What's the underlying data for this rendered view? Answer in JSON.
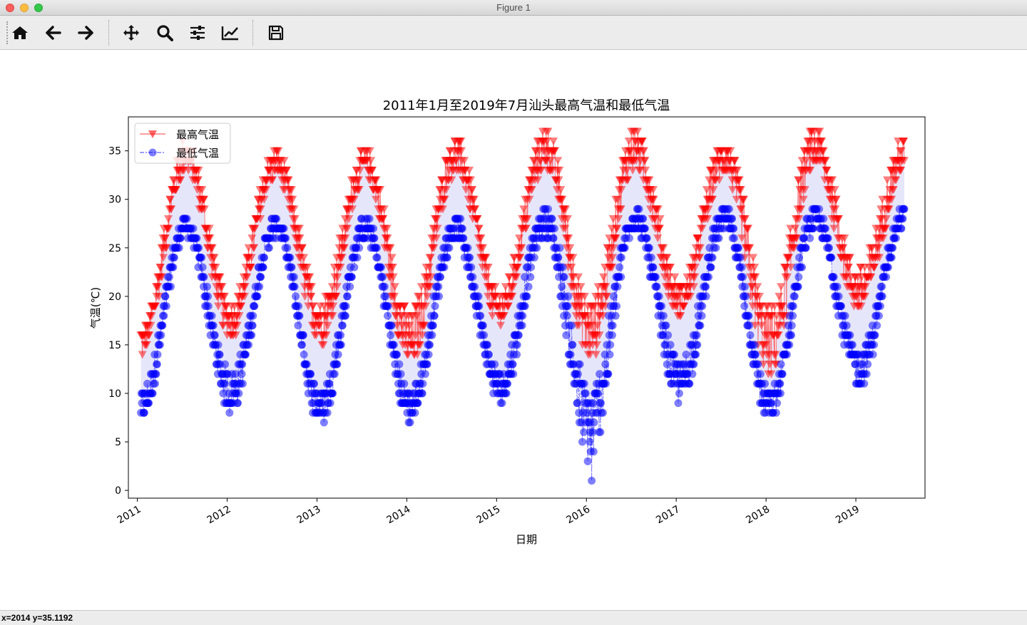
{
  "window": {
    "title": "Figure 1"
  },
  "toolbar": {
    "buttons": [
      {
        "name": "home-button",
        "icon": "home-icon"
      },
      {
        "name": "back-button",
        "icon": "arrow-left-icon"
      },
      {
        "name": "forward-button",
        "icon": "arrow-right-icon"
      },
      {
        "name": "pan-button",
        "icon": "move-icon"
      },
      {
        "name": "zoom-button",
        "icon": "zoom-icon"
      },
      {
        "name": "subplots-button",
        "icon": "sliders-icon"
      },
      {
        "name": "edit-axes-button",
        "icon": "line-chart-icon"
      },
      {
        "name": "save-button",
        "icon": "save-icon"
      }
    ]
  },
  "status": {
    "coords": "x=2014 y=35.1192"
  },
  "chart_data": {
    "type": "line",
    "title": "2011年1月至2019年7月汕头最高气温和最低气温",
    "xlabel": "日期",
    "ylabel": "气温(℃)",
    "x_range": [
      "2010-11-25",
      "2019-10-10"
    ],
    "xlim": [
      2010.9,
      2019.77
    ],
    "ylim": [
      -0.8,
      38.5
    ],
    "x_ticks": [
      "2011",
      "2012",
      "2013",
      "2014",
      "2015",
      "2016",
      "2017",
      "2018",
      "2019"
    ],
    "y_ticks": [
      0,
      5,
      10,
      15,
      20,
      25,
      30,
      35
    ],
    "grid": false,
    "legend": "top-left",
    "fill_between": {
      "color": "#e6e6fa"
    },
    "series": [
      {
        "name": "最高气温",
        "color": "#ff0000",
        "marker": "triangle-down",
        "linestyle": "solid",
        "alpha": 0.5,
        "summary": [
          {
            "period": "2011-01",
            "min": 13,
            "max": 18
          },
          {
            "period": "2011-07",
            "min": 30,
            "max": 36
          },
          {
            "period": "2012-01",
            "min": 15,
            "max": 21
          },
          {
            "period": "2012-07",
            "min": 30,
            "max": 35
          },
          {
            "period": "2013-01",
            "min": 14,
            "max": 22
          },
          {
            "period": "2013-07",
            "min": 30,
            "max": 35
          },
          {
            "period": "2014-01",
            "min": 11,
            "max": 21
          },
          {
            "period": "2014-07",
            "min": 30,
            "max": 36
          },
          {
            "period": "2015-01",
            "min": 16,
            "max": 22
          },
          {
            "period": "2015-07",
            "min": 30,
            "max": 37
          },
          {
            "period": "2016-01",
            "min": 12,
            "max": 22
          },
          {
            "period": "2016-07",
            "min": 30,
            "max": 37
          },
          {
            "period": "2017-01",
            "min": 17,
            "max": 23
          },
          {
            "period": "2017-07",
            "min": 30,
            "max": 36
          },
          {
            "period": "2018-01",
            "min": 10,
            "max": 22
          },
          {
            "period": "2018-07",
            "min": 30,
            "max": 37
          },
          {
            "period": "2019-01",
            "min": 17,
            "max": 25
          },
          {
            "period": "2019-07",
            "min": 30,
            "max": 36
          }
        ]
      },
      {
        "name": "最低气温",
        "color": "#0000ff",
        "marker": "circle",
        "linestyle": "dashdot",
        "alpha": 0.5,
        "summary": [
          {
            "period": "2011-01",
            "min": 6,
            "max": 12
          },
          {
            "period": "2011-07",
            "min": 25,
            "max": 28
          },
          {
            "period": "2012-01",
            "min": 7,
            "max": 14
          },
          {
            "period": "2012-07",
            "min": 25,
            "max": 28
          },
          {
            "period": "2013-01",
            "min": 6,
            "max": 12
          },
          {
            "period": "2013-07",
            "min": 24,
            "max": 28
          },
          {
            "period": "2014-01",
            "min": 6,
            "max": 12
          },
          {
            "period": "2014-07",
            "min": 24,
            "max": 28
          },
          {
            "period": "2015-01",
            "min": 8,
            "max": 14
          },
          {
            "period": "2015-07",
            "min": 24,
            "max": 29
          },
          {
            "period": "2016-01",
            "min": 1,
            "max": 14
          },
          {
            "period": "2016-07",
            "min": 25,
            "max": 29
          },
          {
            "period": "2017-01",
            "min": 8,
            "max": 15
          },
          {
            "period": "2017-07",
            "min": 25,
            "max": 29
          },
          {
            "period": "2018-01",
            "min": 6,
            "max": 12
          },
          {
            "period": "2018-07",
            "min": 25,
            "max": 29
          },
          {
            "period": "2019-01",
            "min": 10,
            "max": 16
          },
          {
            "period": "2019-07",
            "min": 26,
            "max": 29
          }
        ]
      }
    ]
  }
}
